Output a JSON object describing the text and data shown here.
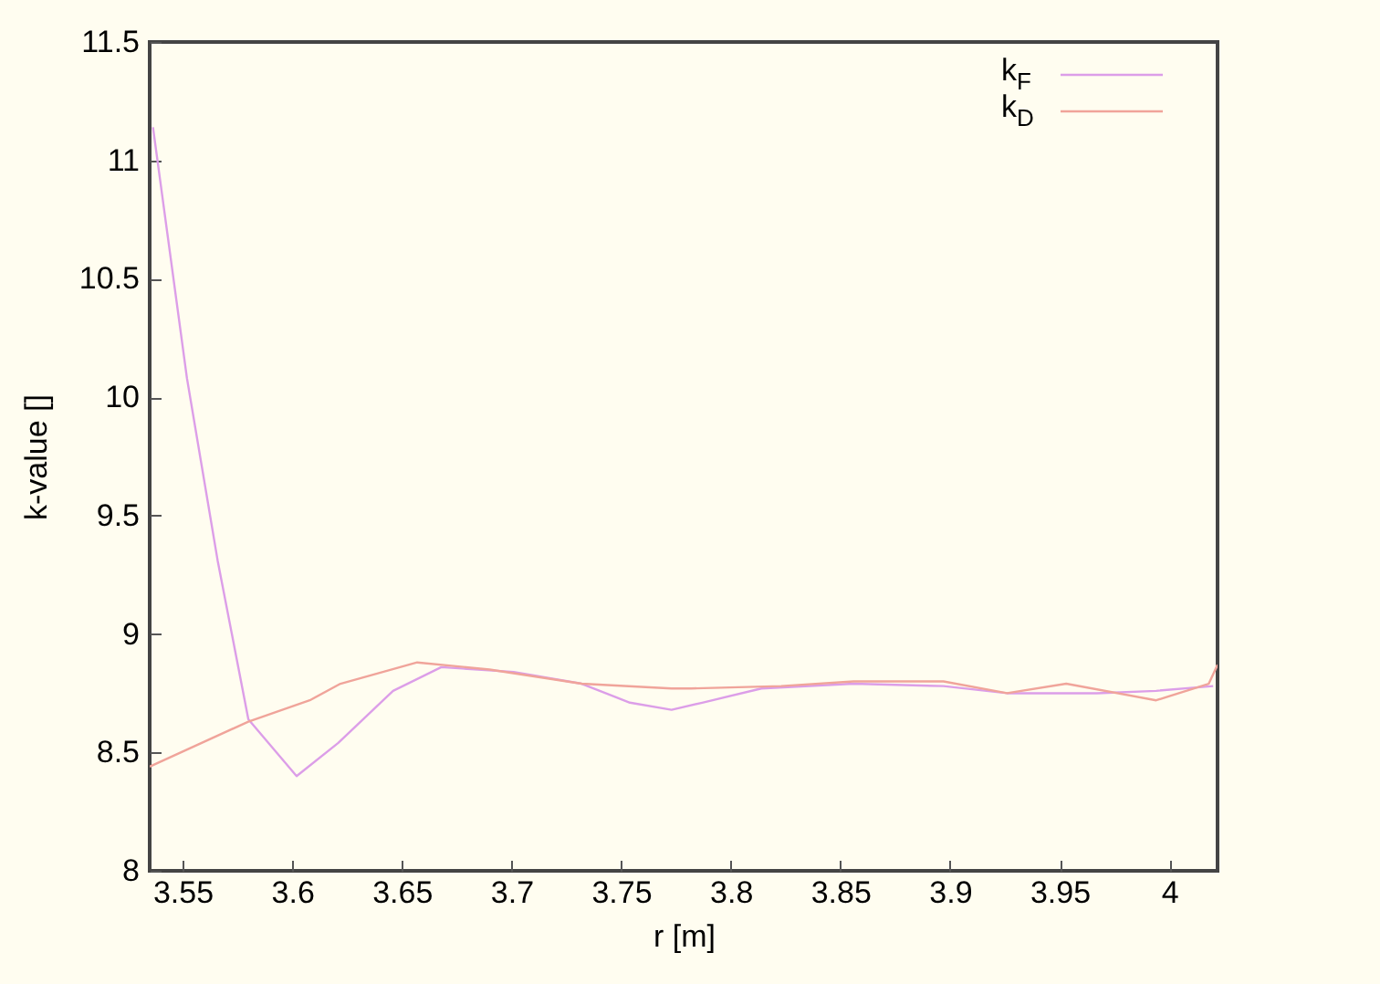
{
  "chart_data": {
    "type": "line",
    "xlabel": "r [m]",
    "ylabel": "k-value []",
    "xlim": [
      3.535,
      4.022
    ],
    "ylim": [
      8,
      11.5
    ],
    "xticks": [
      3.55,
      3.6,
      3.65,
      3.7,
      3.75,
      3.8,
      3.85,
      3.9,
      3.95,
      4
    ],
    "yticks": [
      8,
      8.5,
      9,
      9.5,
      10,
      10.5,
      11,
      11.5
    ],
    "legend": "top right",
    "grid": false,
    "series": [
      {
        "name": "k$_{F}$",
        "color": "#dc9ee8",
        "x": [
          3.5365,
          3.552,
          3.566,
          3.58,
          3.602,
          3.621,
          3.646,
          3.668,
          3.701,
          3.732,
          3.754,
          3.773,
          3.787,
          3.814,
          3.856,
          3.897,
          3.926,
          3.967,
          3.994,
          4.02
        ],
        "values": [
          11.14,
          10.08,
          9.31,
          8.64,
          8.4,
          8.54,
          8.76,
          8.86,
          8.84,
          8.79,
          8.71,
          8.68,
          8.71,
          8.77,
          8.79,
          8.78,
          8.75,
          8.75,
          8.76,
          8.78
        ]
      },
      {
        "name": "k$_{D}$",
        "color": "#f0a49a",
        "x": [
          3.535,
          3.58,
          3.608,
          3.622,
          3.657,
          3.69,
          3.732,
          3.773,
          3.782,
          3.823,
          3.856,
          3.897,
          3.926,
          3.953,
          3.994,
          4.018,
          4.022
        ],
        "values": [
          8.44,
          8.63,
          8.72,
          8.79,
          8.88,
          8.85,
          8.79,
          8.77,
          8.77,
          8.78,
          8.8,
          8.8,
          8.75,
          8.79,
          8.72,
          8.79,
          8.87
        ]
      }
    ]
  }
}
